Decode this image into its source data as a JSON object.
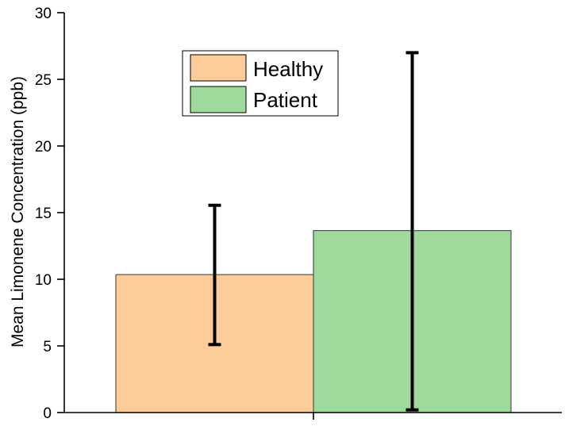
{
  "chart_data": {
    "type": "bar",
    "title": "",
    "xlabel": "",
    "ylabel": "Mean Limonene Concentration (ppb)",
    "ylim": [
      0,
      30
    ],
    "yticks": [
      0,
      5,
      10,
      15,
      20,
      25,
      30
    ],
    "grid": false,
    "legend": {
      "placement": "top-center",
      "entries": [
        "Healthy",
        "Patient"
      ]
    },
    "series": [
      {
        "name": "Healthy",
        "value": 10.35,
        "error_low": 5.1,
        "error_high": 15.55,
        "color": "#FDCC9A"
      },
      {
        "name": "Patient",
        "value": 13.65,
        "error_low": 0.2,
        "error_high": 27.0,
        "color": "#9FDA9D"
      }
    ]
  }
}
